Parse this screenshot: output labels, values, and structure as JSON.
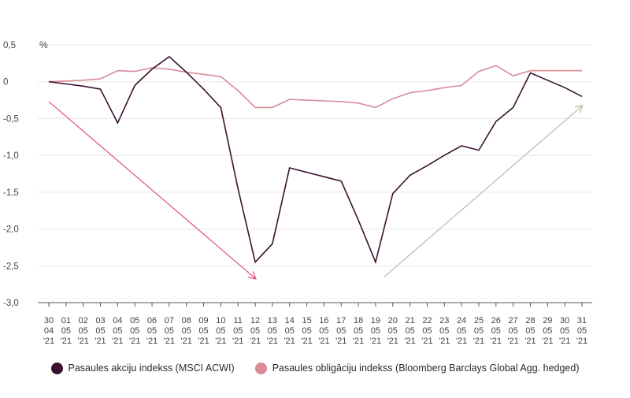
{
  "chart_data": {
    "type": "line",
    "unit_label": "%",
    "ylim": [
      -3.0,
      0.5
    ],
    "y_ticks": [
      0.5,
      0,
      -0.5,
      -1.0,
      -1.5,
      -2.0,
      -2.5,
      -3.0
    ],
    "y_tick_labels": [
      "0,5",
      "0",
      "-0,5",
      "-1,0",
      "-1,5",
      "-2,0",
      "-2,5",
      "-3,0"
    ],
    "grid": true,
    "legend_position": "bottom",
    "categories": [
      [
        "30",
        "04",
        "'21"
      ],
      [
        "01",
        "05",
        "'21"
      ],
      [
        "02",
        "05",
        "'21"
      ],
      [
        "03",
        "05",
        "'21"
      ],
      [
        "04",
        "05",
        "'21"
      ],
      [
        "05",
        "05",
        "'21"
      ],
      [
        "06",
        "05",
        "'21"
      ],
      [
        "07",
        "05",
        "'21"
      ],
      [
        "08",
        "05",
        "'21"
      ],
      [
        "09",
        "05",
        "'21"
      ],
      [
        "10",
        "05",
        "'21"
      ],
      [
        "11",
        "05",
        "'21"
      ],
      [
        "12",
        "05",
        "'21"
      ],
      [
        "13",
        "05",
        "'21"
      ],
      [
        "14",
        "05",
        "'21"
      ],
      [
        "15",
        "05",
        "'21"
      ],
      [
        "16",
        "05",
        "'21"
      ],
      [
        "17",
        "05",
        "'21"
      ],
      [
        "18",
        "05",
        "'21"
      ],
      [
        "19",
        "05",
        "'21"
      ],
      [
        "20",
        "05",
        "'21"
      ],
      [
        "21",
        "05",
        "'21"
      ],
      [
        "22",
        "05",
        "'21"
      ],
      [
        "23",
        "05",
        "'21"
      ],
      [
        "24",
        "05",
        "'21"
      ],
      [
        "25",
        "05",
        "'21"
      ],
      [
        "26",
        "05",
        "'21"
      ],
      [
        "27",
        "05",
        "'21"
      ],
      [
        "28",
        "05",
        "'21"
      ],
      [
        "29",
        "05",
        "'21"
      ],
      [
        "30",
        "05",
        "'21"
      ],
      [
        "31",
        "05",
        "'21"
      ]
    ],
    "series": [
      {
        "name": "Pasaules akciju indekss (MSCI ACWI)",
        "color": "#3a1230",
        "values": [
          0,
          -0.03,
          -0.06,
          -0.1,
          -0.56,
          -0.05,
          0.17,
          0.34,
          0.13,
          -0.1,
          -0.35,
          -1.45,
          -2.45,
          -2.2,
          -1.17,
          -1.23,
          -1.29,
          -1.35,
          -1.88,
          -2.45,
          -1.52,
          -1.27,
          -1.14,
          -1.0,
          -0.87,
          -0.93,
          -0.54,
          -0.35,
          0.12,
          0.02,
          -0.08,
          -0.2
        ]
      },
      {
        "name": "Pasaules obligāciju indekss (Bloomberg Barclays Global Agg. hedged)",
        "color": "#d98c98",
        "values": [
          0,
          0.01,
          0.02,
          0.04,
          0.15,
          0.14,
          0.19,
          0.17,
          0.13,
          0.1,
          0.07,
          -0.12,
          -0.35,
          -0.35,
          -0.24,
          -0.25,
          -0.26,
          -0.27,
          -0.29,
          -0.35,
          -0.23,
          -0.15,
          -0.12,
          -0.08,
          -0.05,
          0.14,
          0.22,
          0.08,
          0.15,
          0.15,
          0.15,
          0.15
        ]
      }
    ],
    "annotations": [
      {
        "type": "arrow",
        "color": "#e0507c",
        "from": [
          0,
          -0.27
        ],
        "to": [
          12,
          -2.67
        ]
      },
      {
        "type": "arrow",
        "color": "#b8bba6",
        "from": [
          19.5,
          -2.65
        ],
        "to": [
          31,
          -0.33
        ]
      }
    ]
  }
}
